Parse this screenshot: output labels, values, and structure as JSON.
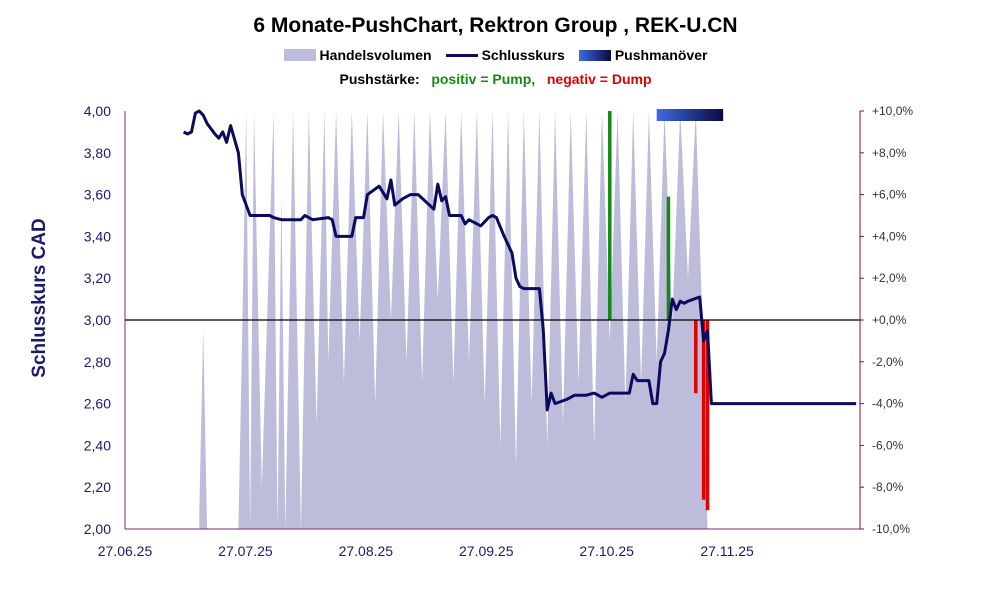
{
  "title": "6 Monate-PushChart, Rektron Group , REK-U.CN",
  "legend": {
    "volume": "Handelsvolumen",
    "close": "Schlusskurs",
    "push": "Pushmanöver"
  },
  "push_info": {
    "label": "Pushstärke:",
    "positive": "positiv = Pump,",
    "negative": "negativ = Dump"
  },
  "colors": {
    "volume": "#BDBDDB",
    "close": "#0A0A5E",
    "pump": "#138A13",
    "dump": "#E00000",
    "push_start": "#3D6BE0",
    "push_end": "#0A0A40",
    "right_axis": "#8B0F3A",
    "left_axis": "#7A2A7A"
  },
  "chart_data": {
    "type": "line",
    "ylabel": "Schlusskurs CAD",
    "ylim": [
      2.0,
      4.0
    ],
    "y2lim": [
      -10,
      10
    ],
    "y_ticks": [
      "4,00",
      "3,80",
      "3,60",
      "3,40",
      "3,20",
      "3,00",
      "2,80",
      "2,60",
      "2,40",
      "2,20",
      "2,00"
    ],
    "y2_ticks": [
      "+10,0%",
      "+8,0%",
      "+6,0%",
      "+4,0%",
      "+2,0%",
      "+0,0%",
      "-2,0%",
      "-4,0%",
      "-6,0%",
      "-8,0%",
      "-10,0%"
    ],
    "x_ticks": [
      "27.06.25",
      "27.07.25",
      "27.08.25",
      "27.09.25",
      "27.10.25",
      "27.11.25"
    ],
    "xlim": [
      "2025-06-27",
      "2026-01-01"
    ],
    "close": [
      [
        "2025-07-12",
        3.9
      ],
      [
        "2025-07-13",
        3.89
      ],
      [
        "2025-07-14",
        3.9
      ],
      [
        "2025-07-15",
        3.99
      ],
      [
        "2025-07-16",
        4.0
      ],
      [
        "2025-07-17",
        3.98
      ],
      [
        "2025-07-18",
        3.94
      ],
      [
        "2025-07-20",
        3.89
      ],
      [
        "2025-07-21",
        3.87
      ],
      [
        "2025-07-22",
        3.9
      ],
      [
        "2025-07-23",
        3.85
      ],
      [
        "2025-07-24",
        3.93
      ],
      [
        "2025-07-26",
        3.8
      ],
      [
        "2025-07-27",
        3.6
      ],
      [
        "2025-07-29",
        3.5
      ],
      [
        "2025-08-03",
        3.5
      ],
      [
        "2025-08-04",
        3.49
      ],
      [
        "2025-08-06",
        3.48
      ],
      [
        "2025-08-11",
        3.48
      ],
      [
        "2025-08-12",
        3.5
      ],
      [
        "2025-08-13",
        3.49
      ],
      [
        "2025-08-14",
        3.48
      ],
      [
        "2025-08-18",
        3.49
      ],
      [
        "2025-08-19",
        3.48
      ],
      [
        "2025-08-20",
        3.4
      ],
      [
        "2025-08-24",
        3.4
      ],
      [
        "2025-08-25",
        3.49
      ],
      [
        "2025-08-27",
        3.49
      ],
      [
        "2025-08-28",
        3.6
      ],
      [
        "2025-08-31",
        3.64
      ],
      [
        "2025-09-02",
        3.58
      ],
      [
        "2025-09-03",
        3.67
      ],
      [
        "2025-09-04",
        3.55
      ],
      [
        "2025-09-06",
        3.58
      ],
      [
        "2025-09-08",
        3.6
      ],
      [
        "2025-09-10",
        3.6
      ],
      [
        "2025-09-14",
        3.53
      ],
      [
        "2025-09-15",
        3.65
      ],
      [
        "2025-09-16",
        3.57
      ],
      [
        "2025-09-17",
        3.59
      ],
      [
        "2025-09-18",
        3.5
      ],
      [
        "2025-09-21",
        3.5
      ],
      [
        "2025-09-22",
        3.46
      ],
      [
        "2025-09-23",
        3.48
      ],
      [
        "2025-09-26",
        3.45
      ],
      [
        "2025-09-28",
        3.49
      ],
      [
        "2025-09-29",
        3.5
      ],
      [
        "2025-09-30",
        3.49
      ],
      [
        "2025-10-02",
        3.4
      ],
      [
        "2025-10-04",
        3.32
      ],
      [
        "2025-10-05",
        3.2
      ],
      [
        "2025-10-06",
        3.16
      ],
      [
        "2025-10-07",
        3.15
      ],
      [
        "2025-10-11",
        3.15
      ],
      [
        "2025-10-12",
        2.95
      ],
      [
        "2025-10-13",
        2.57
      ],
      [
        "2025-10-14",
        2.65
      ],
      [
        "2025-10-15",
        2.6
      ],
      [
        "2025-10-18",
        2.62
      ],
      [
        "2025-10-20",
        2.64
      ],
      [
        "2025-10-23",
        2.64
      ],
      [
        "2025-10-25",
        2.65
      ],
      [
        "2025-10-26",
        2.64
      ],
      [
        "2025-10-27",
        2.63
      ],
      [
        "2025-10-29",
        2.65
      ],
      [
        "2025-11-03",
        2.65
      ],
      [
        "2025-11-04",
        2.74
      ],
      [
        "2025-11-05",
        2.71
      ],
      [
        "2025-11-08",
        2.71
      ],
      [
        "2025-11-09",
        2.6
      ],
      [
        "2025-11-10",
        2.6
      ],
      [
        "2025-11-11",
        2.8
      ],
      [
        "2025-11-12",
        2.84
      ],
      [
        "2025-11-13",
        2.95
      ],
      [
        "2025-11-14",
        3.1
      ],
      [
        "2025-11-15",
        3.05
      ],
      [
        "2025-11-16",
        3.09
      ],
      [
        "2025-11-17",
        3.08
      ],
      [
        "2025-11-18",
        3.09
      ],
      [
        "2025-11-21",
        3.11
      ],
      [
        "2025-11-22",
        2.9
      ],
      [
        "2025-11-23",
        2.95
      ],
      [
        "2025-11-24",
        2.6
      ],
      [
        "2025-12-31",
        2.6
      ]
    ],
    "volume_pct": [
      [
        "2025-07-16",
        0
      ],
      [
        "2025-07-16",
        4
      ],
      [
        "2025-07-17",
        48
      ],
      [
        "2025-07-18",
        0
      ],
      [
        "2025-07-26",
        0
      ],
      [
        "2025-07-27",
        48
      ],
      [
        "2025-07-28",
        100
      ],
      [
        "2025-07-29",
        0
      ],
      [
        "2025-07-30",
        100
      ],
      [
        "2025-08-01",
        10
      ],
      [
        "2025-08-04",
        100
      ],
      [
        "2025-08-05",
        0
      ],
      [
        "2025-08-06",
        80
      ],
      [
        "2025-08-07",
        0
      ],
      [
        "2025-08-09",
        100
      ],
      [
        "2025-08-11",
        0
      ],
      [
        "2025-08-13",
        100
      ],
      [
        "2025-08-15",
        25
      ],
      [
        "2025-08-17",
        100
      ],
      [
        "2025-08-18",
        40
      ],
      [
        "2025-08-20",
        100
      ],
      [
        "2025-08-22",
        35
      ],
      [
        "2025-08-24",
        100
      ],
      [
        "2025-08-26",
        45
      ],
      [
        "2025-08-28",
        100
      ],
      [
        "2025-08-30",
        30
      ],
      [
        "2025-09-01",
        100
      ],
      [
        "2025-09-03",
        50
      ],
      [
        "2025-09-05",
        100
      ],
      [
        "2025-09-07",
        40
      ],
      [
        "2025-09-09",
        100
      ],
      [
        "2025-09-11",
        35
      ],
      [
        "2025-09-13",
        100
      ],
      [
        "2025-09-15",
        55
      ],
      [
        "2025-09-17",
        100
      ],
      [
        "2025-09-19",
        35
      ],
      [
        "2025-09-21",
        100
      ],
      [
        "2025-09-23",
        40
      ],
      [
        "2025-09-25",
        100
      ],
      [
        "2025-09-27",
        30
      ],
      [
        "2025-09-29",
        100
      ],
      [
        "2025-10-01",
        20
      ],
      [
        "2025-10-03",
        100
      ],
      [
        "2025-10-05",
        15
      ],
      [
        "2025-10-07",
        100
      ],
      [
        "2025-10-09",
        30
      ],
      [
        "2025-10-11",
        100
      ],
      [
        "2025-10-13",
        20
      ],
      [
        "2025-10-15",
        100
      ],
      [
        "2025-10-17",
        25
      ],
      [
        "2025-10-19",
        100
      ],
      [
        "2025-10-21",
        35
      ],
      [
        "2025-10-23",
        100
      ],
      [
        "2025-10-25",
        20
      ],
      [
        "2025-10-27",
        100
      ],
      [
        "2025-10-29",
        45
      ],
      [
        "2025-10-31",
        100
      ],
      [
        "2025-11-02",
        30
      ],
      [
        "2025-11-04",
        100
      ],
      [
        "2025-11-06",
        35
      ],
      [
        "2025-11-08",
        100
      ],
      [
        "2025-11-10",
        40
      ],
      [
        "2025-11-12",
        100
      ],
      [
        "2025-11-14",
        50
      ],
      [
        "2025-11-16",
        100
      ],
      [
        "2025-11-18",
        60
      ],
      [
        "2025-11-20",
        100
      ],
      [
        "2025-11-22",
        40
      ],
      [
        "2025-11-23",
        0
      ]
    ],
    "push_bars": [
      {
        "date": "2025-10-29",
        "pct": 10.0
      },
      {
        "date": "2025-11-13",
        "pct": 5.9
      },
      {
        "date": "2025-11-20",
        "pct": -3.5
      },
      {
        "date": "2025-11-22",
        "pct": -8.6
      },
      {
        "date": "2025-11-23",
        "pct": -9.1
      }
    ],
    "push_period": [
      "2025-11-10",
      "2025-11-27"
    ]
  }
}
